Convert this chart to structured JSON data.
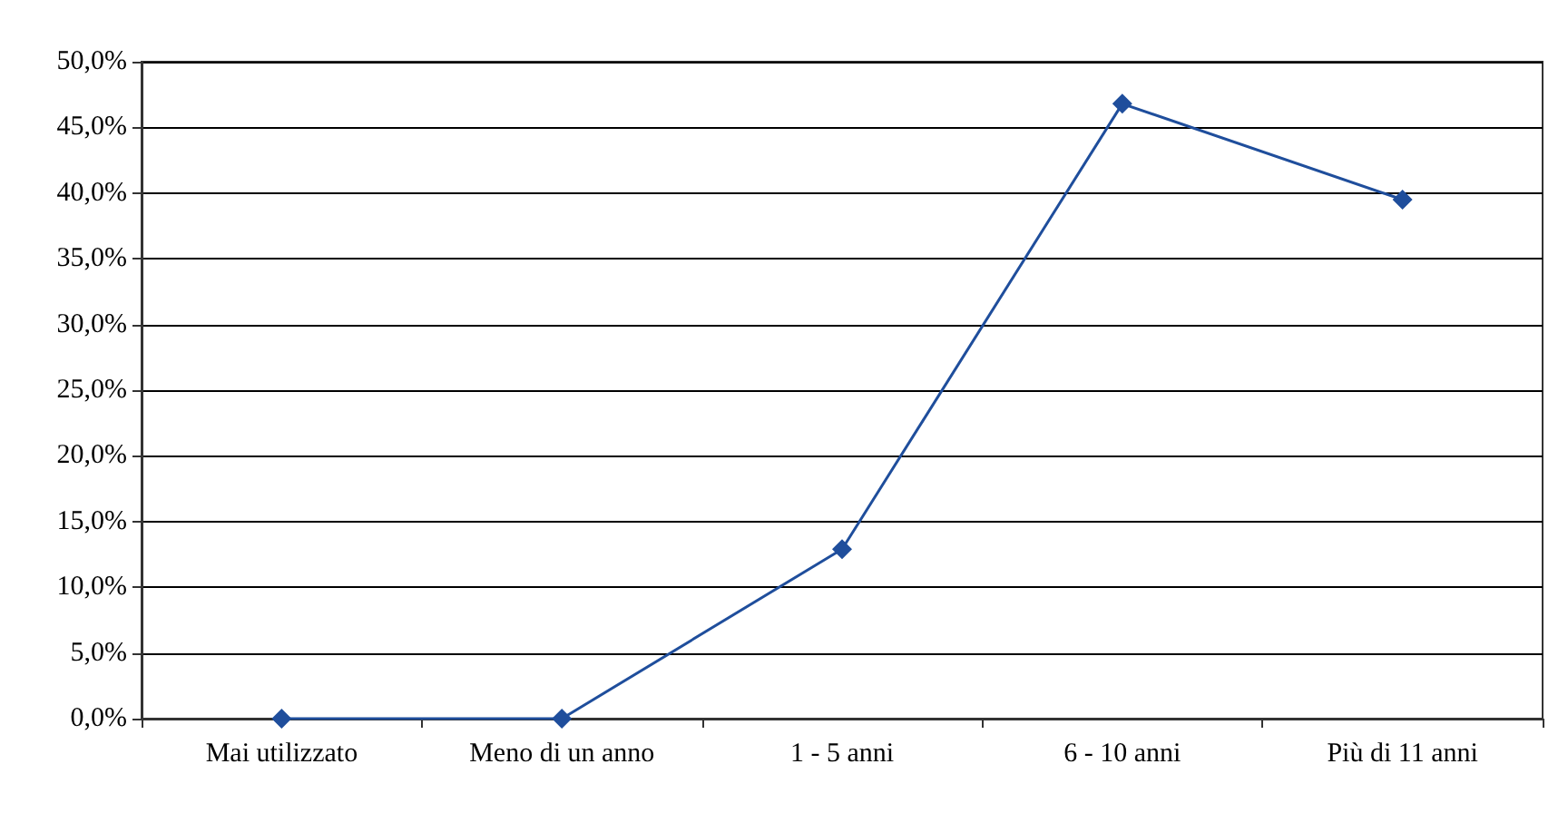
{
  "chart_data": {
    "type": "line",
    "categories": [
      "Mai utilizzato",
      "Meno di un anno",
      "1 - 5 anni",
      "6 - 10 anni",
      "Più di 11 anni"
    ],
    "series": [
      {
        "color": "#1f4e9c",
        "values": [
          0,
          0,
          12.9,
          46.8,
          39.5
        ]
      }
    ],
    "ylim": [
      0,
      50
    ],
    "yticks": [
      {
        "value": 0,
        "label": "0,0%"
      },
      {
        "value": 5,
        "label": "5,0%"
      },
      {
        "value": 10,
        "label": "10,0%"
      },
      {
        "value": 15,
        "label": "15,0%"
      },
      {
        "value": 20,
        "label": "20,0%"
      },
      {
        "value": 25,
        "label": "25,0%"
      },
      {
        "value": 30,
        "label": "30,0%"
      },
      {
        "value": 35,
        "label": "35,0%"
      },
      {
        "value": 40,
        "label": "40,0%"
      },
      {
        "value": 45,
        "label": "45,0%"
      },
      {
        "value": 50,
        "label": "50,0%"
      }
    ],
    "grid": "y",
    "marker": "diamond",
    "line_style": "solid"
  }
}
